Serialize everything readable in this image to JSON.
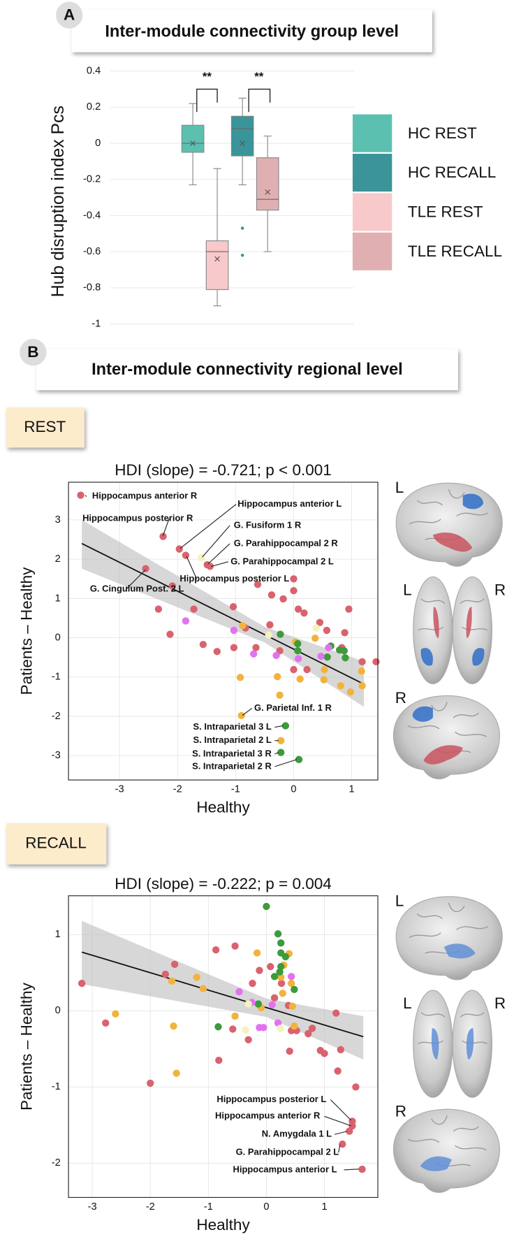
{
  "sections": [
    {
      "label": "A",
      "title": "Inter-module connectivity group level"
    },
    {
      "label": "B",
      "title": "Inter-module connectivity regional level"
    }
  ],
  "chart_data": [
    {
      "type": "box",
      "y_label": "Hub disruption index Pcs",
      "ylim": [
        -1,
        0.4
      ],
      "yticks": [
        -1,
        -0.8,
        -0.6,
        -0.4,
        -0.2,
        0,
        0.2,
        0.4
      ],
      "grid": true,
      "annotations": [
        "**",
        "**"
      ],
      "series": [
        {
          "name": "HC REST",
          "color": "#5cc0b0",
          "min": -0.23,
          "q1": -0.05,
          "median": 0,
          "q3": 0.1,
          "max": 0.22,
          "mean": 0,
          "outliers": []
        },
        {
          "name": "HC RECALL",
          "color": "#3a9499",
          "min": -0.23,
          "q1": -0.07,
          "median": 0.08,
          "q3": 0.15,
          "max": 0.25,
          "mean": 0,
          "outliers": [
            -0.47,
            -0.62
          ]
        },
        {
          "name": "TLE REST",
          "color": "#f8c9ca",
          "min": -0.9,
          "q1": -0.81,
          "median": -0.6,
          "q3": -0.54,
          "max": -0.14,
          "mean": -0.64,
          "outliers": []
        },
        {
          "name": "TLE RECALL",
          "color": "#e0afb1",
          "min": -0.6,
          "q1": -0.37,
          "median": -0.31,
          "q3": -0.08,
          "max": 0.04,
          "mean": -0.27,
          "outliers": []
        }
      ]
    },
    {
      "type": "scatter",
      "condition": "REST",
      "title": "HDI (slope) = -0.721; p < 0.001",
      "x_label": "Healthy",
      "y_label": "Patients – Healthy",
      "xlim": [
        -3.88,
        1.45
      ],
      "ylim": [
        -3.62,
        3.96
      ],
      "xticks": [
        -3,
        -2,
        -1,
        0,
        1
      ],
      "yticks": [
        -3,
        -2,
        -1,
        0,
        1,
        2,
        3
      ],
      "grid": true,
      "brain_labels": [
        "L",
        "L",
        "R",
        "R"
      ],
      "fit": {
        "x": [
          -3.65,
          1.21
        ],
        "y": [
          2.4,
          -1.18
        ]
      },
      "band": {
        "x": [
          -3.65,
          -0.5,
          1.21
        ],
        "upper": [
          3.0,
          0.28,
          -0.6
        ],
        "lower": [
          1.76,
          -0.12,
          -1.76
        ]
      },
      "annotations": [
        "Hippocampus anterior R",
        "Hippocampus anterior L",
        "Hippocampus posterior R",
        "G. Fusiform 1 R",
        "G. Parahippocampal 2 R",
        "G. Parahippocampal 2 L",
        "Hippocampus posterior L",
        "G. Cingulum Post. 2 L",
        "G. Parietal Inf. 1 R",
        "S. Intraparietal 3 L",
        "S. Intraparietal 2 L",
        "S. Intraparietal 3 R",
        "S. Intraparietal 2 R"
      ],
      "series": [
        {
          "color": "#d9626e",
          "x": [
            -3.67,
            -2.25,
            -1.97,
            -1.86,
            -1.49,
            -1.44,
            -2.55,
            -2.33,
            -2.09,
            -1.72,
            -2.13,
            -1.56,
            -1.32,
            -1.04,
            -0.83,
            -0.62,
            -0.38,
            -0.41,
            -0.18,
            0,
            0,
            0.08,
            0.18,
            0.45,
            0.57,
            0.88,
            0.95,
            0.83,
            1.18,
            1.42,
            0,
            0.23,
            -1.03,
            -0.65,
            -0.24
          ],
          "y": [
            3.63,
            2.58,
            2.26,
            2.1,
            1.86,
            1.82,
            1.76,
            0.73,
            1.32,
            0.73,
            0.09,
            -0.17,
            -0.35,
            0.79,
            0.25,
            1.36,
            1.09,
            0.33,
            0.99,
            1.5,
            1.2,
            0.73,
            0.63,
            0.39,
            0.19,
            0.13,
            0.73,
            -0.25,
            -0.61,
            -0.61,
            -0.81,
            -0.81,
            -0.25,
            -0.25,
            -0.33
          ]
        },
        {
          "color": "#f2b33d",
          "x": [
            -0.92,
            -0.28,
            -0.24,
            0.11,
            0.52,
            0.53,
            0.81,
            0.98,
            1.18,
            1.17,
            -0.88,
            -0.9,
            -0.22,
            0.03,
            0.37
          ],
          "y": [
            -1.01,
            -0.99,
            -1.46,
            -1.05,
            -1.07,
            -0.81,
            -1.22,
            -1.38,
            -1.22,
            -0.85,
            0.31,
            -1.98,
            -2.62,
            -0.11,
            -0.01
          ]
        },
        {
          "color": "#3d9a3d",
          "x": [
            -0.14,
            -0.22,
            0.09,
            -0.23,
            0.07,
            0.07,
            0.64,
            0.79,
            0.87,
            0.58,
            0.89
          ],
          "y": [
            -2.24,
            -2.92,
            -3.1,
            0.09,
            -0.15,
            -0.33,
            -0.21,
            -0.31,
            -0.33,
            -0.49,
            -0.51
          ]
        },
        {
          "color": "#e272f0",
          "x": [
            -1.86,
            -1.03,
            -0.69,
            -0.3,
            0.08,
            0.47,
            0.6
          ],
          "y": [
            0.43,
            0.19,
            -0.41,
            -0.45,
            -0.53,
            -0.47,
            -0.25
          ]
        },
        {
          "color": "#f4f3bf",
          "x": [
            -1.59,
            0.39,
            -0.43
          ],
          "y": [
            2.04,
            0.25,
            0.07
          ]
        }
      ]
    },
    {
      "type": "scatter",
      "condition": "RECALL",
      "title": "HDI (slope) = -0.222; p = 0.004",
      "x_label": "Healthy",
      "y_label": "Patients – Healthy",
      "xlim": [
        -3.41,
        1.92
      ],
      "ylim": [
        -2.45,
        1.51
      ],
      "xticks": [
        -3,
        -2,
        -1,
        0,
        1
      ],
      "yticks": [
        -2,
        -1,
        0,
        1
      ],
      "grid": true,
      "brain_labels": [
        "L",
        "L",
        "R",
        "R"
      ],
      "fit": {
        "x": [
          -3.18,
          1.67
        ],
        "y": [
          0.77,
          -0.34
        ]
      },
      "band": {
        "x": [
          -3.18,
          0,
          1.67
        ],
        "upper": [
          1.18,
          0.16,
          -0.07
        ],
        "lower": [
          0.35,
          -0.08,
          -0.64
        ]
      },
      "annotations": [
        "Hippocampus posterior L",
        "Hippocampus anterior R",
        "N. Amygdala 1 L",
        "G. Parahippocampal 2 L",
        "Hippocampus anterior L"
      ],
      "series": [
        {
          "color": "#d9626e",
          "x": [
            -3.18,
            -2.77,
            -2.0,
            -1.74,
            -1.58,
            -0.87,
            -0.82,
            -0.54,
            -0.58,
            -0.31,
            -0.24,
            -0.12,
            0.07,
            0.14,
            0.26,
            0.38,
            0.43,
            0.52,
            0.4,
            0.72,
            0.79,
            0.93,
            1.0,
            1.2,
            1.28,
            1.23,
            1.54,
            1.48,
            1.48,
            1.43,
            1.31,
            1.65
          ],
          "y": [
            0.36,
            -0.16,
            -0.95,
            0.48,
            0.61,
            0.8,
            -0.65,
            0.85,
            -0.24,
            -0.38,
            0.36,
            0.53,
            0.58,
            0.17,
            0.36,
            0.07,
            -0.26,
            -0.26,
            -0.53,
            -0.3,
            -0.23,
            -0.52,
            -0.56,
            -0.03,
            -0.51,
            -0.79,
            -1.0,
            -1.45,
            -1.51,
            -1.58,
            -1.75,
            -2.08
          ]
        },
        {
          "color": "#f2b33d",
          "x": [
            -2.6,
            -1.63,
            -1.55,
            -1.6,
            -1.2,
            -1.09,
            -0.54,
            -0.16,
            -0.09,
            0.25,
            0.3,
            0.39,
            0.43,
            0.28,
            0.45,
            0.48
          ],
          "y": [
            -0.04,
            0.39,
            -0.82,
            -0.2,
            0.44,
            0.29,
            -0.07,
            0.76,
            0.04,
            0.44,
            0.6,
            0.75,
            0.36,
            0.23,
            0.06,
            -0.2
          ]
        },
        {
          "color": "#3d9a3d",
          "x": [
            0,
            0.2,
            0.25,
            0.25,
            0.33,
            0.25,
            0.23,
            0.14,
            -0.83,
            -0.14,
            0.48
          ],
          "y": [
            1.37,
            1.01,
            0.89,
            0.76,
            0.71,
            0.58,
            0.51,
            0.45,
            -0.21,
            0.09,
            0.28
          ]
        },
        {
          "color": "#e272f0",
          "x": [
            -0.47,
            -0.25,
            0.1,
            -0.12,
            -0.05,
            0.2,
            0.43
          ],
          "y": [
            0.25,
            0.11,
            0.08,
            -0.22,
            -0.22,
            -0.16,
            0.45
          ]
        },
        {
          "color": "#f4f3bf",
          "x": [
            -0.31,
            -0.36,
            0.24
          ],
          "y": [
            0.09,
            -0.25,
            -0.23
          ]
        }
      ]
    }
  ]
}
